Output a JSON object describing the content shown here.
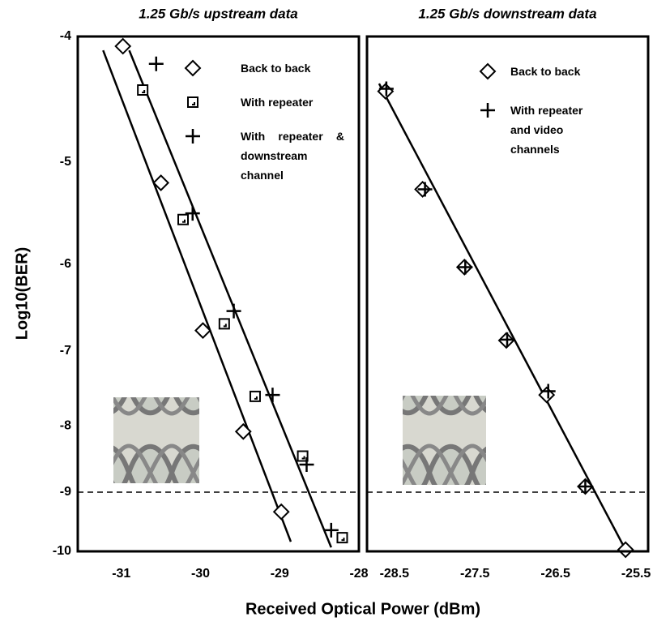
{
  "x_label": "Received Optical Power (dBm)",
  "chart_data": [
    {
      "type": "scatter",
      "title": "1.25 Gb/s upstream data",
      "y_label": "Log10(BER)",
      "xlim": [
        -31.55,
        -28
      ],
      "xticks": [
        -31,
        -30,
        -29,
        -28
      ],
      "ylim": [
        -10,
        -4
      ],
      "yticks": [
        -4,
        -5,
        -6,
        -7,
        -8,
        -9,
        -10
      ],
      "y_scale": "log-negative",
      "hline": -9,
      "series": [
        {
          "name": "Back to back",
          "marker": "diamond",
          "color": "#000000",
          "x": [
            -30.98,
            -30.5,
            -29.97,
            -29.46,
            -28.98
          ],
          "values": [
            -4.07,
            -5.19,
            -6.75,
            -8.08,
            -9.32
          ]
        },
        {
          "name": "With repeater",
          "marker": "square",
          "color": "#000000",
          "x": [
            -30.73,
            -30.22,
            -29.7,
            -29.31,
            -28.71,
            -28.21
          ],
          "values": [
            -4.4,
            -5.54,
            -6.67,
            -7.59,
            -8.44,
            -9.76
          ]
        },
        {
          "name": "With repeater & downstream channel",
          "marker": "plus",
          "color": "#000000",
          "x": [
            -30.56,
            -30.1,
            -29.58,
            -29.09,
            -28.66,
            -28.35
          ],
          "values": [
            -4.2,
            -5.48,
            -6.52,
            -7.57,
            -8.57,
            -9.63
          ]
        }
      ],
      "fits": [
        {
          "x": [
            -31.23,
            -28.86
          ],
          "values": [
            -4.1,
            -9.83
          ]
        },
        {
          "x": [
            -30.9,
            -28.35
          ],
          "values": [
            -4.1,
            -9.93
          ]
        }
      ]
    },
    {
      "type": "scatter",
      "title": "1.25 Gb/s downstream data",
      "xlim": [
        -28.84,
        -25.35
      ],
      "xticks": [
        -28.5,
        -27.5,
        -26.5,
        -25.5
      ],
      "ylim": [
        -10,
        -4
      ],
      "y_scale": "log-negative",
      "hline": -9,
      "series": [
        {
          "name": "Back to back",
          "marker": "diamond",
          "color": "#000000",
          "x": [
            -28.61,
            -28.15,
            -27.63,
            -27.11,
            -26.61,
            -26.13,
            -25.63
          ],
          "values": [
            -4.41,
            -5.25,
            -6.03,
            -6.87,
            -7.57,
            -8.91,
            -9.97
          ]
        },
        {
          "name": "With repeater and video channels",
          "marker": "plus",
          "color": "#000000",
          "x": [
            -28.6,
            -28.12,
            -27.62,
            -27.1,
            -26.59,
            -26.13
          ],
          "values": [
            -4.39,
            -5.25,
            -6.03,
            -6.86,
            -7.52,
            -8.91
          ]
        }
      ],
      "fits": [
        {
          "x": [
            -28.69,
            -25.62
          ],
          "values": [
            -4.35,
            -10
          ]
        }
      ]
    }
  ]
}
